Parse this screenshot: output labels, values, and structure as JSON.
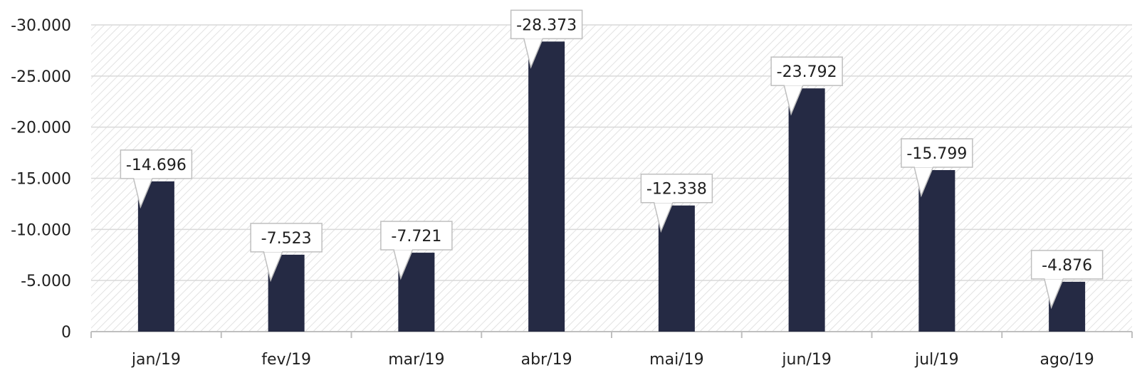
{
  "chart_data": {
    "type": "bar",
    "categories": [
      "jan/19",
      "fev/19",
      "mar/19",
      "abr/19",
      "mai/19",
      "jun/19",
      "jul/19",
      "ago/19"
    ],
    "values": [
      -14696,
      -7523,
      -7721,
      -28373,
      -12338,
      -23792,
      -15799,
      -4876
    ],
    "value_labels": [
      "-14.696",
      "-7.523",
      "-7.721",
      "-28.373",
      "-12.338",
      "-23.792",
      "-15.799",
      "-4.876"
    ],
    "y_ticks": [
      0,
      -5000,
      -10000,
      -15000,
      -20000,
      -25000,
      -30000
    ],
    "y_tick_labels": [
      "0",
      "-5.000",
      "-10.000",
      "-15.000",
      "-20.000",
      "-25.000",
      "-30.000"
    ],
    "ylim": [
      0,
      -30000
    ],
    "y_axis_reversed": true,
    "grid": true,
    "legend": "none",
    "colors": {
      "bar": "#252a44",
      "grid": "#d9d9d9",
      "axis": "#bfbfbf",
      "hatch": "#e2e2e2",
      "callout_border": "#bfbfbf"
    }
  }
}
